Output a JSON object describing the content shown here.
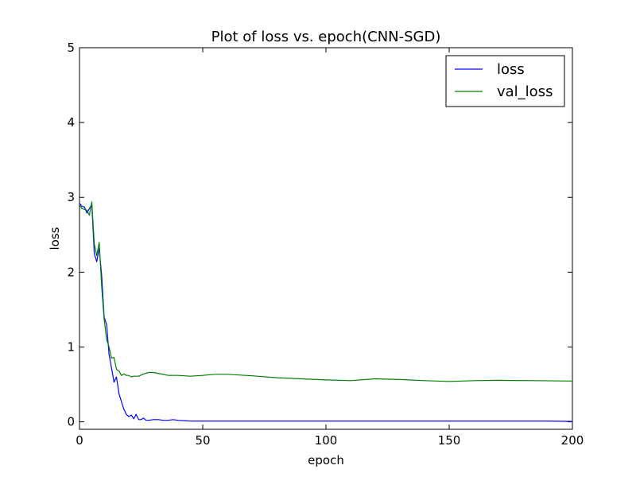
{
  "chart_data": {
    "type": "line",
    "title": "Plot of loss vs. epoch(CNN-SGD)",
    "xlabel": "epoch",
    "ylabel": "loss",
    "xlim": [
      0,
      200
    ],
    "ylim": [
      -0.1,
      5
    ],
    "xticks": [
      0,
      50,
      100,
      150,
      200
    ],
    "yticks": [
      0,
      1,
      2,
      3,
      4,
      5
    ],
    "legend": "top-right",
    "grid": false,
    "series": [
      {
        "name": "loss",
        "color": "#0000ff",
        "points": [
          [
            0,
            2.92
          ],
          [
            1,
            2.88
          ],
          [
            2,
            2.87
          ],
          [
            3,
            2.79
          ],
          [
            4,
            2.85
          ],
          [
            5,
            2.9
          ],
          [
            6,
            2.25
          ],
          [
            7,
            2.14
          ],
          [
            8,
            2.32
          ],
          [
            9,
            1.95
          ],
          [
            10,
            1.4
          ],
          [
            11,
            1.3
          ],
          [
            12,
            0.9
          ],
          [
            13,
            0.72
          ],
          [
            14,
            0.53
          ],
          [
            15,
            0.6
          ],
          [
            16,
            0.38
          ],
          [
            17,
            0.27
          ],
          [
            18,
            0.17
          ],
          [
            19,
            0.1
          ],
          [
            20,
            0.07
          ],
          [
            21,
            0.09
          ],
          [
            22,
            0.04
          ],
          [
            23,
            0.1
          ],
          [
            24,
            0.03
          ],
          [
            25,
            0.03
          ],
          [
            26,
            0.05
          ],
          [
            27,
            0.02
          ],
          [
            28,
            0.02
          ],
          [
            30,
            0.03
          ],
          [
            32,
            0.03
          ],
          [
            34,
            0.02
          ],
          [
            36,
            0.02
          ],
          [
            38,
            0.03
          ],
          [
            40,
            0.02
          ],
          [
            45,
            0.01
          ],
          [
            50,
            0.01
          ],
          [
            60,
            0.01
          ],
          [
            70,
            0.01
          ],
          [
            80,
            0.01
          ],
          [
            90,
            0.01
          ],
          [
            100,
            0.01
          ],
          [
            120,
            0.01
          ],
          [
            150,
            0.01
          ],
          [
            170,
            0.01
          ],
          [
            190,
            0.01
          ],
          [
            200,
            0.005
          ]
        ]
      },
      {
        "name": "val_loss",
        "color": "#008000",
        "points": [
          [
            0,
            2.9
          ],
          [
            1,
            2.85
          ],
          [
            2,
            2.84
          ],
          [
            3,
            2.83
          ],
          [
            4,
            2.76
          ],
          [
            5,
            2.94
          ],
          [
            6,
            2.38
          ],
          [
            7,
            2.22
          ],
          [
            8,
            2.4
          ],
          [
            9,
            1.8
          ],
          [
            10,
            1.37
          ],
          [
            11,
            1.1
          ],
          [
            12,
            1.0
          ],
          [
            13,
            0.85
          ],
          [
            14,
            0.86
          ],
          [
            15,
            0.7
          ],
          [
            16,
            0.68
          ],
          [
            17,
            0.62
          ],
          [
            18,
            0.64
          ],
          [
            19,
            0.62
          ],
          [
            20,
            0.62
          ],
          [
            21,
            0.6
          ],
          [
            22,
            0.61
          ],
          [
            24,
            0.61
          ],
          [
            26,
            0.64
          ],
          [
            28,
            0.66
          ],
          [
            30,
            0.66
          ],
          [
            33,
            0.64
          ],
          [
            36,
            0.62
          ],
          [
            40,
            0.62
          ],
          [
            45,
            0.61
          ],
          [
            50,
            0.62
          ],
          [
            55,
            0.635
          ],
          [
            60,
            0.635
          ],
          [
            70,
            0.615
          ],
          [
            80,
            0.59
          ],
          [
            90,
            0.575
          ],
          [
            100,
            0.56
          ],
          [
            110,
            0.55
          ],
          [
            120,
            0.575
          ],
          [
            130,
            0.565
          ],
          [
            140,
            0.55
          ],
          [
            150,
            0.54
          ],
          [
            160,
            0.55
          ],
          [
            170,
            0.555
          ],
          [
            185,
            0.55
          ],
          [
            200,
            0.545
          ]
        ]
      }
    ]
  }
}
